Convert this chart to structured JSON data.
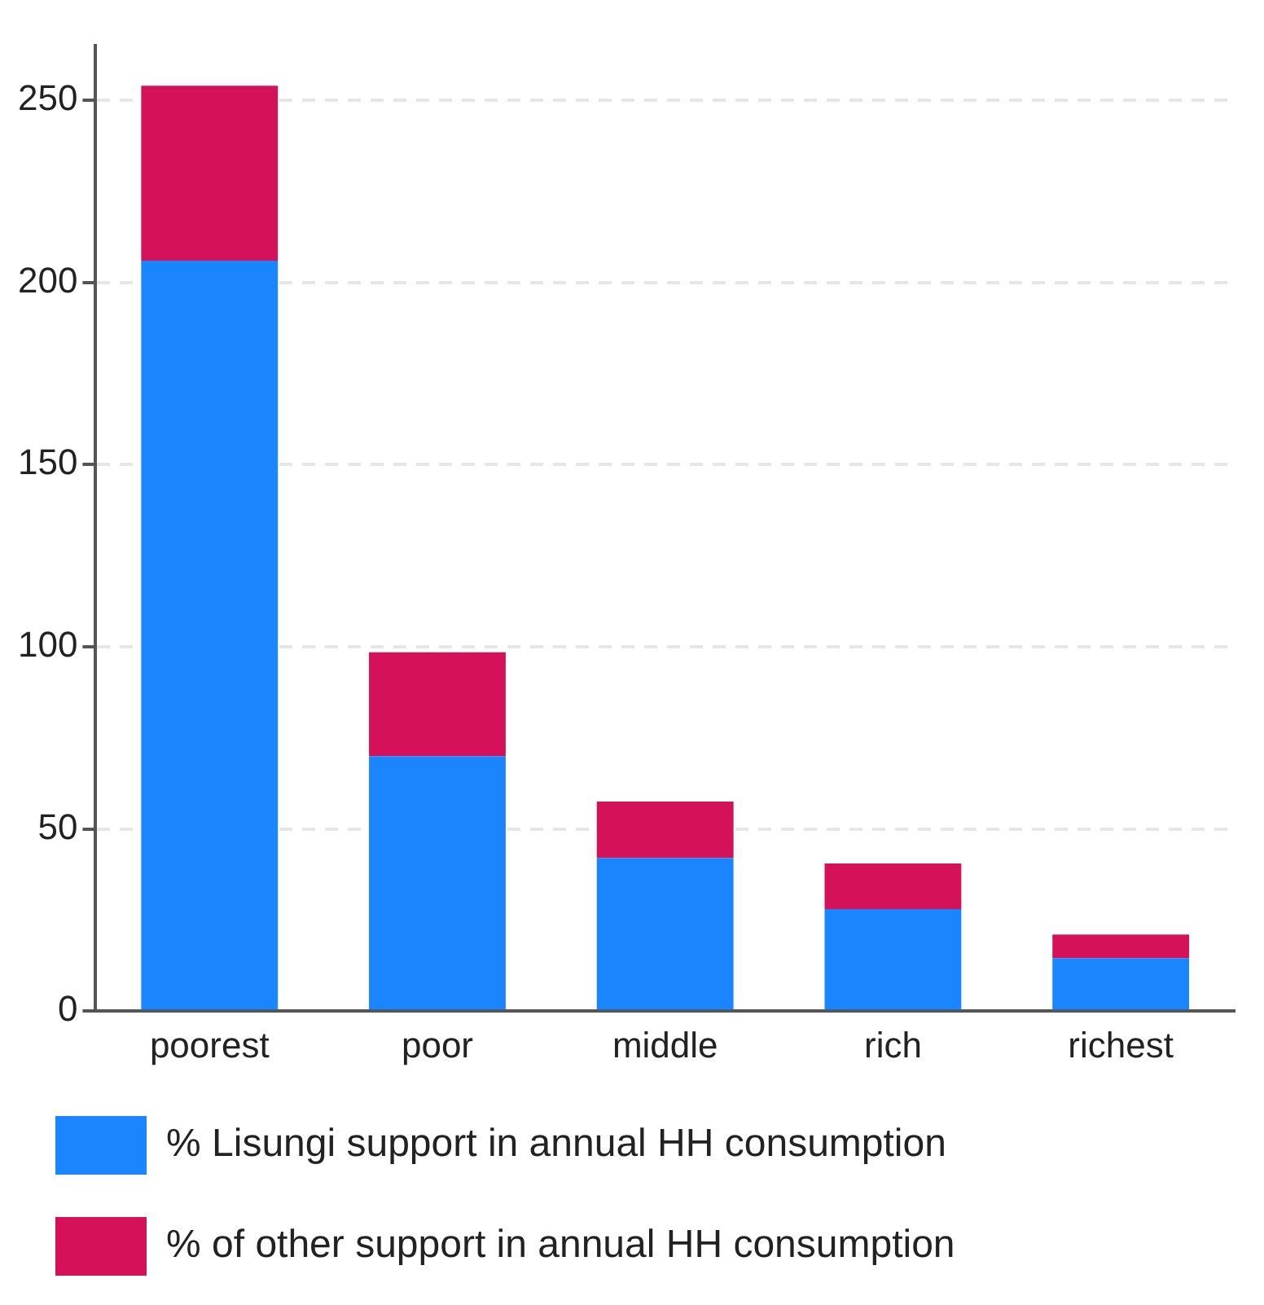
{
  "chart_data": {
    "type": "bar",
    "stacked": true,
    "categories": [
      "poorest",
      "poor",
      "middle",
      "rich",
      "richest"
    ],
    "series": [
      {
        "name": "% Lisungi support in annual HH consumption",
        "color": "#1a85ff",
        "values": [
          206,
          70,
          42,
          28,
          14.5
        ]
      },
      {
        "name": "% of other support in annual HH consumption",
        "color": "#d41159",
        "values": [
          48,
          28.5,
          15.5,
          12.5,
          6.5
        ]
      }
    ],
    "ylim": [
      0,
      265
    ],
    "yticks": [
      0,
      50,
      100,
      150,
      200,
      250
    ],
    "grid": "y",
    "legend": "bottom"
  }
}
